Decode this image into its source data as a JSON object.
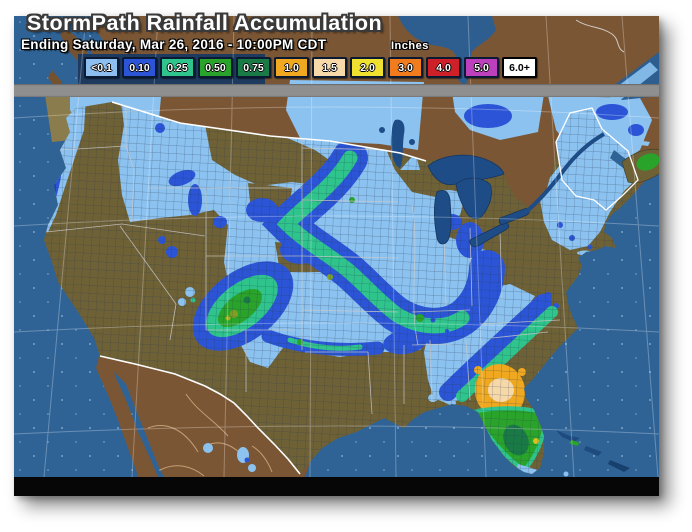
{
  "header": {
    "title": "StormPath Rainfall Accumulation",
    "subtitle": "Ending Saturday, Mar 26, 2016 - 10:00PM CDT",
    "units_label": "Inches"
  },
  "legend": {
    "items": [
      {
        "label": "<0.1",
        "color": "#8CBEF0",
        "text_color": "#FFFFFF"
      },
      {
        "label": "0.10",
        "color": "#2B55D6",
        "text_color": "#FFFFFF"
      },
      {
        "label": "0.25",
        "color": "#2EC48C",
        "text_color": "#FFFFFF"
      },
      {
        "label": "0.50",
        "color": "#2AA32A",
        "text_color": "#FFFFFF"
      },
      {
        "label": "0.75",
        "color": "#1A7A46",
        "text_color": "#FFFFFF"
      },
      {
        "label": "1.0",
        "color": "#EFA81F",
        "text_color": "#FFFFFF"
      },
      {
        "label": "1.5",
        "color": "#F7D9A9",
        "text_color": "#FFFFFF"
      },
      {
        "label": "2.0",
        "color": "#F0E030",
        "text_color": "#FFFFFF"
      },
      {
        "label": "3.0",
        "color": "#F07C1E",
        "text_color": "#FFFFFF"
      },
      {
        "label": "4.0",
        "color": "#CE2029",
        "text_color": "#FFFFFF"
      },
      {
        "label": "5.0",
        "color": "#BC3FBC",
        "text_color": "#FFFFFF"
      },
      {
        "label": "6.0+",
        "color": "#FFFFFF",
        "text_color": "#000000"
      }
    ]
  },
  "map": {
    "region": "Continental United States rainfall accumulation map",
    "colors": {
      "ocean": "#2F6396",
      "canada_land": "#7B5634",
      "us_land": "#6F6136",
      "lakes": "#1E4C86",
      "border": "#FFFFFF",
      "light_precip": "#8CC2F0",
      "divider_band": "#8F8F8F",
      "footer_bar": "#060606"
    }
  }
}
